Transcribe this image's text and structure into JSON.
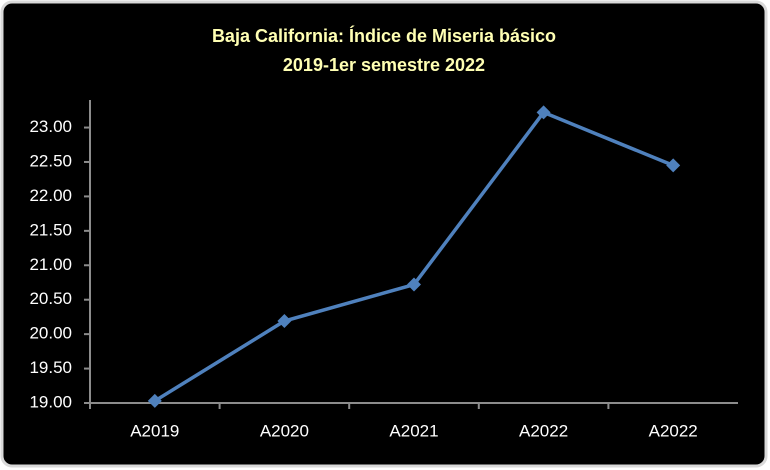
{
  "chart_data": {
    "type": "line",
    "title": "Baja California: Índice de Miseria básico",
    "subtitle": "2019-1er semestre 2022",
    "categories": [
      "A2019",
      "A2020",
      "A2021",
      "A2022",
      "A2022"
    ],
    "series": [
      {
        "name": "Índice de Miseria",
        "color": "#4f81bd",
        "values": [
          19.03,
          20.19,
          20.72,
          23.22,
          22.45
        ]
      }
    ],
    "ylim": [
      19,
      23.4
    ],
    "yticks": [
      {
        "value": 19,
        "label": "19.00"
      },
      {
        "value": 19.5,
        "label": "19.50"
      },
      {
        "value": 20,
        "label": "20.00"
      },
      {
        "value": 20.5,
        "label": "20.50"
      },
      {
        "value": 21,
        "label": "21.00"
      },
      {
        "value": 21.5,
        "label": "21.50"
      },
      {
        "value": 22,
        "label": "22.00"
      },
      {
        "value": 22.5,
        "label": "22.50"
      },
      {
        "value": 23,
        "label": "23.00"
      }
    ],
    "grid": false
  }
}
